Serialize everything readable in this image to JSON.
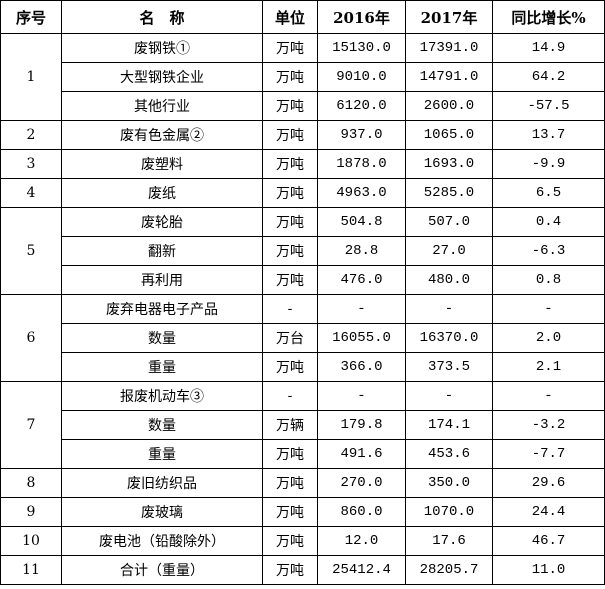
{
  "table": {
    "header": [
      "序号",
      "名　称",
      "单位",
      "2016年",
      "2017年",
      "同比增长%"
    ],
    "groups": [
      {
        "no": "1",
        "rows": [
          [
            "废钢铁①",
            "万吨",
            "15130.0",
            "17391.0",
            "14.9"
          ],
          [
            "大型钢铁企业",
            "万吨",
            "9010.0",
            "14791.0",
            "64.2"
          ],
          [
            "其他行业",
            "万吨",
            "6120.0",
            "2600.0",
            "-57.5"
          ]
        ]
      },
      {
        "no": "2",
        "rows": [
          [
            "废有色金属②",
            "万吨",
            "937.0",
            "1065.0",
            "13.7"
          ]
        ]
      },
      {
        "no": "3",
        "rows": [
          [
            "废塑料",
            "万吨",
            "1878.0",
            "1693.0",
            "-9.9"
          ]
        ]
      },
      {
        "no": "4",
        "rows": [
          [
            "废纸",
            "万吨",
            "4963.0",
            "5285.0",
            "6.5"
          ]
        ]
      },
      {
        "no": "5",
        "rows": [
          [
            "废轮胎",
            "万吨",
            "504.8",
            "507.0",
            "0.4"
          ],
          [
            "翻新",
            "万吨",
            "28.8",
            "27.0",
            "-6.3"
          ],
          [
            "再利用",
            "万吨",
            "476.0",
            "480.0",
            "0.8"
          ]
        ]
      },
      {
        "no": "6",
        "rows": [
          [
            "废弃电器电子产品",
            "-",
            "-",
            "-",
            "-"
          ],
          [
            "数量",
            "万台",
            "16055.0",
            "16370.0",
            "2.0"
          ],
          [
            "重量",
            "万吨",
            "366.0",
            "373.5",
            "2.1"
          ]
        ]
      },
      {
        "no": "7",
        "rows": [
          [
            "报废机动车③",
            "-",
            "-",
            "-",
            "-"
          ],
          [
            "数量",
            "万辆",
            "179.8",
            "174.1",
            "-3.2"
          ],
          [
            "重量",
            "万吨",
            "491.6",
            "453.6",
            "-7.7"
          ]
        ]
      },
      {
        "no": "8",
        "rows": [
          [
            "废旧纺织品",
            "万吨",
            "270.0",
            "350.0",
            "29.6"
          ]
        ]
      },
      {
        "no": "9",
        "rows": [
          [
            "废玻璃",
            "万吨",
            "860.0",
            "1070.0",
            "24.4"
          ]
        ]
      },
      {
        "no": "10",
        "rows": [
          [
            "废电池（铅酸除外）",
            "万吨",
            "12.0",
            "17.6",
            "46.7"
          ]
        ]
      },
      {
        "no": "11",
        "rows": [
          [
            "合计（重量）",
            "万吨",
            "25412.4",
            "28205.7",
            "11.0"
          ]
        ]
      }
    ]
  }
}
